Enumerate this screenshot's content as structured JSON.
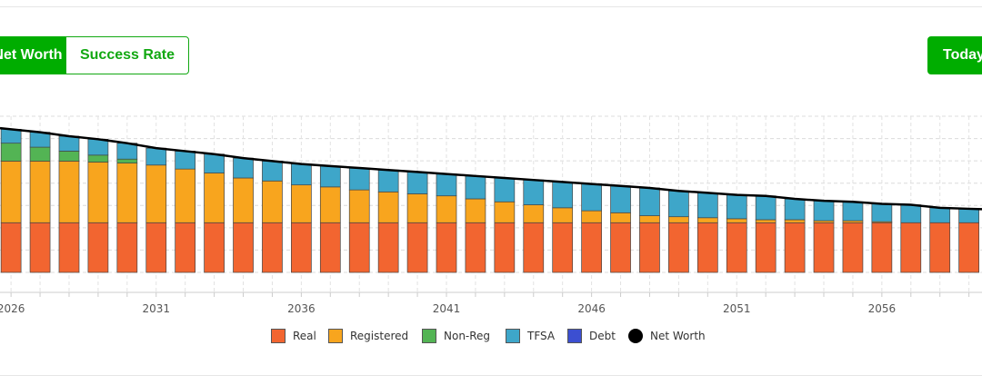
{
  "toolbar": {
    "net_worth_label": "Net Worth",
    "success_rate_label": "Success Rate",
    "today_label": "Today"
  },
  "colors": {
    "real": "#f26530",
    "registered": "#f8a51e",
    "nonreg": "#53b454",
    "tfsa": "#3ea6c9",
    "debt": "#3c4fd1",
    "networth": "#000000",
    "toggle_green": "#00ad00"
  },
  "chart_data": {
    "type": "bar",
    "stacked": true,
    "x": [
      2026,
      2027,
      2028,
      2029,
      2030,
      2031,
      2032,
      2033,
      2034,
      2035,
      2036,
      2037,
      2038,
      2039,
      2040,
      2041,
      2042,
      2043,
      2044,
      2045,
      2046,
      2047,
      2048,
      2049,
      2050,
      2051,
      2052,
      2053,
      2054,
      2055,
      2056,
      2057,
      2058,
      2059
    ],
    "x_tick_labels": [
      "2026",
      "2031",
      "2036",
      "2041",
      "2046",
      "2051",
      "2056"
    ],
    "x_visible_range": [
      2025.62,
      2059.45
    ],
    "ylim": [
      0,
      1.9
    ],
    "grid": true,
    "legend_position": "bottom",
    "series": [
      {
        "name": "Real",
        "color_key": "real",
        "values": [
          0.5,
          0.5,
          0.5,
          0.5,
          0.5,
          0.5,
          0.5,
          0.5,
          0.5,
          0.5,
          0.5,
          0.5,
          0.5,
          0.5,
          0.5,
          0.5,
          0.5,
          0.5,
          0.5,
          0.5,
          0.5,
          0.5,
          0.5,
          0.5,
          0.5,
          0.5,
          0.5,
          0.5,
          0.5,
          0.5,
          0.5,
          0.5,
          0.5,
          0.5
        ]
      },
      {
        "name": "Registered",
        "color_key": "registered",
        "values": [
          0.62,
          0.62,
          0.62,
          0.61,
          0.6,
          0.58,
          0.54,
          0.5,
          0.45,
          0.42,
          0.38,
          0.36,
          0.33,
          0.31,
          0.29,
          0.27,
          0.24,
          0.21,
          0.18,
          0.15,
          0.12,
          0.1,
          0.07,
          0.06,
          0.05,
          0.04,
          0.03,
          0.03,
          0.02,
          0.02,
          0.01,
          0.0,
          0.0,
          0.0
        ]
      },
      {
        "name": "Non-Reg",
        "color_key": "nonreg",
        "values": [
          0.18,
          0.14,
          0.1,
          0.07,
          0.04,
          0.0,
          0.0,
          0.0,
          0.0,
          0.0,
          0.0,
          0.0,
          0.0,
          0.0,
          0.0,
          0.0,
          0.0,
          0.0,
          0.0,
          0.0,
          0.0,
          0.0,
          0.0,
          0.0,
          0.0,
          0.0,
          0.0,
          0.0,
          0.0,
          0.0,
          0.0,
          0.0,
          0.0,
          0.0
        ]
      },
      {
        "name": "TFSA",
        "color_key": "tfsa",
        "values": [
          0.14,
          0.15,
          0.15,
          0.16,
          0.16,
          0.17,
          0.18,
          0.19,
          0.2,
          0.2,
          0.21,
          0.21,
          0.22,
          0.22,
          0.22,
          0.22,
          0.23,
          0.24,
          0.25,
          0.26,
          0.27,
          0.27,
          0.28,
          0.26,
          0.25,
          0.24,
          0.24,
          0.21,
          0.2,
          0.19,
          0.18,
          0.18,
          0.15,
          0.14
        ]
      },
      {
        "name": "Debt",
        "color_key": "debt",
        "values": [
          0,
          0,
          0,
          0,
          0,
          0,
          0,
          0,
          0,
          0,
          0,
          0,
          0,
          0,
          0,
          0,
          0,
          0,
          0,
          0,
          0,
          0,
          0,
          0,
          0,
          0,
          0,
          0,
          0,
          0,
          0,
          0,
          0,
          0
        ]
      }
    ],
    "net_worth": {
      "name": "Net Worth",
      "color_key": "networth",
      "values": [
        1.44,
        1.41,
        1.37,
        1.34,
        1.3,
        1.25,
        1.22,
        1.19,
        1.15,
        1.12,
        1.09,
        1.07,
        1.05,
        1.03,
        1.01,
        0.99,
        0.97,
        0.95,
        0.93,
        0.91,
        0.89,
        0.87,
        0.85,
        0.82,
        0.8,
        0.78,
        0.77,
        0.74,
        0.72,
        0.71,
        0.69,
        0.68,
        0.65,
        0.64
      ]
    },
    "legend": [
      "Real",
      "Registered",
      "Non-Reg",
      "TFSA",
      "Debt",
      "Net Worth"
    ]
  }
}
